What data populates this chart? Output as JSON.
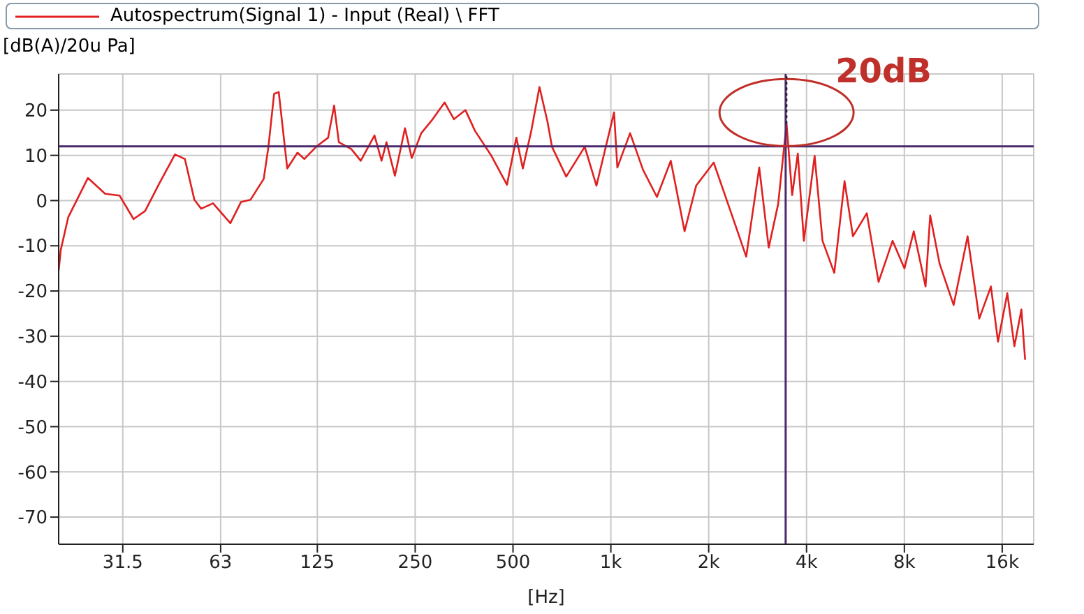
{
  "chart_data": {
    "type": "line",
    "ylabel": "[dB(A)/20u Pa]",
    "xlabel": "[Hz]",
    "log": "x",
    "grid": true,
    "legend": "top",
    "marker": "none",
    "line_style": "solid",
    "xlim": [
      20,
      20000
    ],
    "xticks": [
      31.5,
      63,
      125,
      250,
      500,
      {
        "value": 1000,
        "label": "1k"
      },
      {
        "value": 2000,
        "label": "2k"
      },
      {
        "value": 4000,
        "label": "4k"
      },
      {
        "value": 8000,
        "label": "8k"
      },
      {
        "value": 16000,
        "label": "16k"
      }
    ],
    "ylim": [
      -76,
      28
    ],
    "yticks": [
      -70,
      -60,
      -50,
      -40,
      -30,
      -20,
      -10,
      0,
      10,
      20
    ],
    "series": [
      {
        "name": "Autospectrum(Signal 1) - Input (Real) \\ FFT",
        "color": "#e02020",
        "x": [
          20,
          20.3,
          21.4,
          24.6,
          27.8,
          30.8,
          34,
          36.9,
          40.8,
          45.6,
          48.9,
          52.3,
          54.9,
          59.7,
          67.5,
          72.8,
          77.9,
          85.5,
          88.4,
          92,
          95.1,
          97.7,
          101,
          108.6,
          114,
          124,
          134.9,
          140.8,
          145.6,
          159,
          170,
          187.4,
          197,
          204,
          216.6,
          232.6,
          244,
          261,
          283,
          308,
          329,
          357,
          382,
          429,
          479,
          512,
          536,
          569,
          603,
          638,
          659,
          729,
          831,
          903,
          1023,
          1047,
          1146,
          1256,
          1386,
          1529,
          1686,
          1830,
          2072,
          2347,
          2609,
          2861,
          3060,
          3271,
          3472,
          3613,
          3760,
          3925,
          4236,
          4479,
          4869,
          5236,
          5556,
          6131,
          6663,
          7360,
          8006,
          8550,
          9295,
          9605,
          10270,
          11340,
          12520,
          13600,
          14770,
          15530,
          16590,
          17440,
          18330,
          18820
        ],
        "values": [
          -15.5,
          -10.9,
          -3.7,
          5,
          1.5,
          1.1,
          -4.1,
          -2.3,
          3.8,
          10.2,
          9.2,
          0.2,
          -1.8,
          -0.6,
          -5,
          -0.3,
          0.2,
          4.8,
          11.9,
          23.6,
          24,
          16.4,
          7.1,
          10.6,
          9.2,
          11.9,
          13.9,
          21,
          12.9,
          11.4,
          8.8,
          14.4,
          8.8,
          12.9,
          5.5,
          16,
          9.4,
          14.9,
          18,
          21.7,
          18,
          20,
          15.4,
          9.9,
          3.5,
          13.9,
          7.1,
          15.4,
          25.1,
          17.5,
          11.9,
          5.3,
          11.9,
          3.3,
          19.5,
          7.3,
          14.9,
          6.8,
          0.8,
          8.8,
          -6.8,
          3.3,
          8.4,
          -2.8,
          -12.4,
          7.3,
          -10.4,
          -0.8,
          17,
          1.2,
          10.4,
          -8.9,
          9.9,
          -8.9,
          -16,
          4.3,
          -7.9,
          -2.8,
          -18,
          -8.9,
          -15,
          -6.8,
          -19,
          -3.3,
          -14,
          -23.1,
          -7.9,
          -26.1,
          -19,
          -31.2,
          -20.5,
          -32.2,
          -24.1,
          -35.2
        ]
      }
    ],
    "ref_lines": [
      {
        "axis": "y",
        "value": 12,
        "color": "#4b2a6b"
      },
      {
        "axis": "x",
        "value": 3450,
        "color": "#4b2a6b"
      }
    ],
    "annotations": [
      {
        "text": "20dB",
        "x": 3472,
        "y": 17
      }
    ]
  }
}
